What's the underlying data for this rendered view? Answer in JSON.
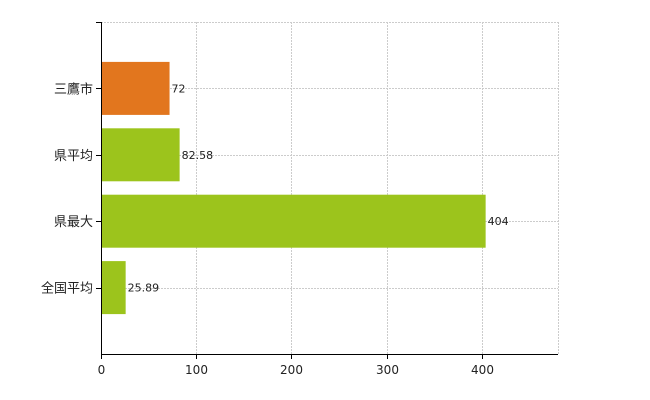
{
  "chart_data": {
    "type": "bar",
    "orientation": "horizontal",
    "categories": [
      "三鷹市",
      "県平均",
      "県最大",
      "全国平均"
    ],
    "values": [
      72,
      82.58,
      404,
      25.89
    ],
    "value_labels": [
      "72",
      "82.58",
      "404",
      "25.89"
    ],
    "xlim": [
      0,
      480
    ],
    "x_ticks": [
      0,
      100,
      200,
      300,
      400
    ],
    "x_tick_labels": [
      "0",
      "100",
      "200",
      "300",
      "400"
    ],
    "grid": true,
    "colors": {
      "highlight": "#e2761e",
      "default": "#9cc41c",
      "grid": "#cccccc",
      "axis": "#000000"
    },
    "highlight_category": "三鷹市"
  }
}
